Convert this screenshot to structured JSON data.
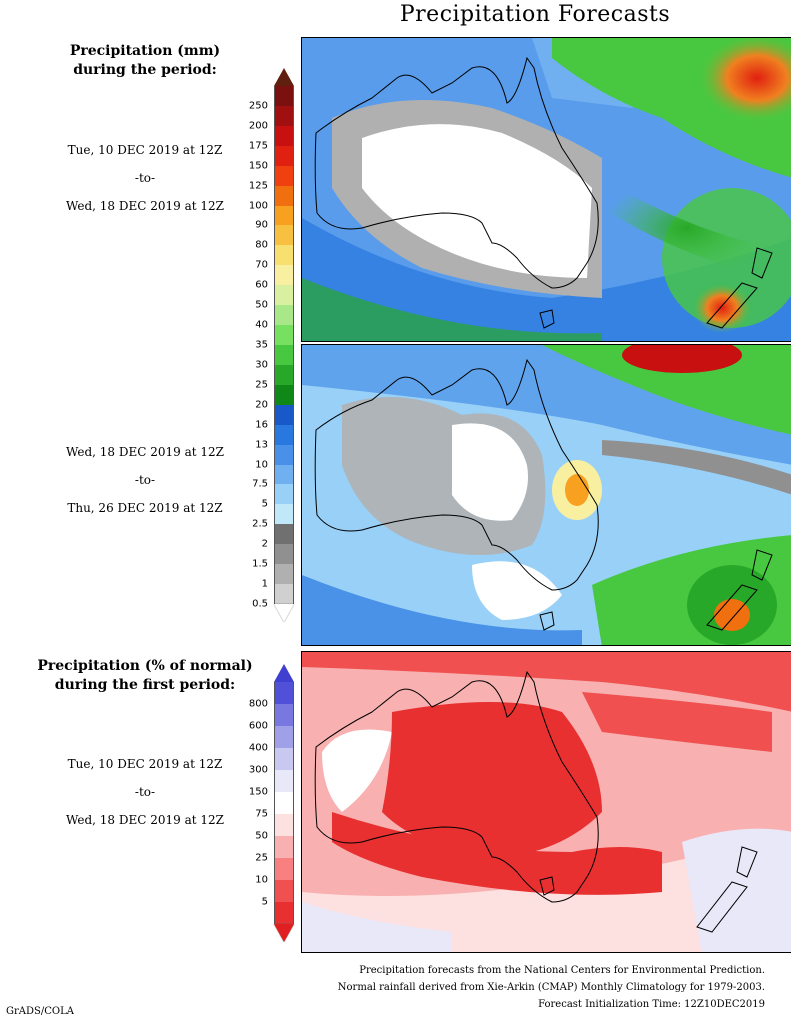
{
  "title": "Precipitation Forecasts",
  "panel1": {
    "legend_title_line1": "Precipitation (mm)",
    "legend_title_line2": "during the period:",
    "start": "Tue, 10 DEC 2019 at 12Z",
    "to": "-to-",
    "end": "Wed, 18 DEC 2019 at 12Z"
  },
  "panel2": {
    "start": "Wed, 18 DEC 2019 at 12Z",
    "to": "-to-",
    "end": "Thu, 26 DEC 2019 at 12Z"
  },
  "panel3": {
    "legend_title_line1": "Precipitation (% of normal)",
    "legend_title_line2": "during the first period:",
    "start": "Tue, 10 DEC 2019 at 12Z",
    "to": "-to-",
    "end": "Wed, 18 DEC 2019 at 12Z"
  },
  "mm_scale": {
    "labels": [
      "250",
      "200",
      "175",
      "150",
      "125",
      "100",
      "90",
      "80",
      "70",
      "60",
      "50",
      "40",
      "35",
      "30",
      "25",
      "20",
      "16",
      "13",
      "10",
      "7.5",
      "5",
      "2.5",
      "2",
      "1.5",
      "1",
      "0.5"
    ],
    "colors": [
      "#7a1010",
      "#a01010",
      "#c81010",
      "#e02010",
      "#f04010",
      "#f07010",
      "#f8a020",
      "#f8c040",
      "#f8e070",
      "#f8f0a0",
      "#d8f0a0",
      "#a8e888",
      "#78e060",
      "#48c840",
      "#28a828",
      "#108818",
      "#1858c8",
      "#2878e0",
      "#4890e8",
      "#70b0f0",
      "#98d0f8",
      "#c0e8f8",
      "#707070",
      "#909090",
      "#b0b0b0",
      "#d0d0d0"
    ],
    "top_arrow_color": "#602010",
    "bottom_arrow_color": "#ffffff"
  },
  "pct_scale": {
    "labels": [
      "800",
      "600",
      "400",
      "300",
      "150",
      "75",
      "50",
      "25",
      "10",
      "5"
    ],
    "colors": [
      "#5050d8",
      "#7878e0",
      "#a0a0e8",
      "#c8c8f0",
      "#e8e8f8",
      "#ffffff",
      "#fde0e0",
      "#f8b0b0",
      "#f88080",
      "#f05050",
      "#e83030"
    ],
    "top_arrow_color": "#4040d0",
    "bottom_arrow_color": "#e02020"
  },
  "footer": {
    "line1": "Precipitation forecasts from the National Centers for Environmental Prediction.",
    "line2": "Normal rainfall derived from Xie-Arkin (CMAP) Monthly Climatology for 1979-2003.",
    "line3": "Forecast Initialization Time: 12Z10DEC2019"
  },
  "credit": "GrADS/COLA"
}
